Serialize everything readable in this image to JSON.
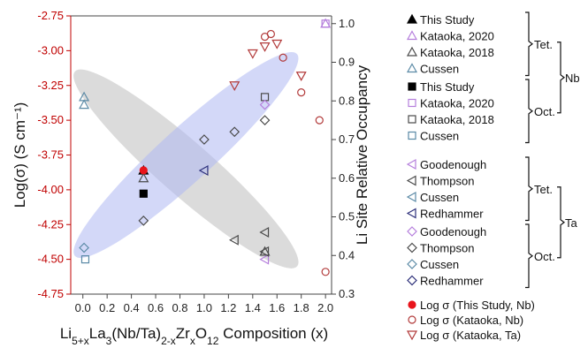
{
  "colors": {
    "left_axis": "#c00000",
    "grey_ellipse": "#bdbdbd",
    "blue_ellipse": "#aeb8f2",
    "violet": "#b57edc",
    "grey": "#4a4a4a",
    "teal": "#5b8aa6",
    "navy": "#2c2f7a",
    "red": "#e8141b",
    "dark_red": "#b23a3a"
  },
  "chart_data": {
    "type": "scatter",
    "xlabel_parts": [
      {
        "t": "Li",
        "s": ""
      },
      {
        "t": "5+x",
        "s": "sub"
      },
      {
        "t": "La",
        "s": ""
      },
      {
        "t": "3",
        "s": "sub"
      },
      {
        "t": "(Nb/Ta)",
        "s": ""
      },
      {
        "t": "2-x",
        "s": "sub"
      },
      {
        "t": "Zr",
        "s": ""
      },
      {
        "t": "x",
        "s": "sub"
      },
      {
        "t": "O",
        "s": ""
      },
      {
        "t": "12",
        "s": "sub"
      },
      {
        "t": " Composition (x)",
        "s": ""
      }
    ],
    "ylabel_left": "Log(σ) (S cm⁻¹)",
    "ylabel_right": "Li Site Relative Occupancy",
    "xlim": [
      -0.1,
      2.05
    ],
    "ylim_left": [
      -4.75,
      -2.75
    ],
    "ylim_right": [
      0.3,
      1.02
    ],
    "x_ticks": [
      "0.0",
      "0.2",
      "0.4",
      "0.6",
      "0.8",
      "1.0",
      "1.2",
      "1.4",
      "1.6",
      "1.8",
      "2.0"
    ],
    "y_ticks_left": [
      "-2.75",
      "-3.00",
      "-3.25",
      "-3.50",
      "-3.75",
      "-4.00",
      "-4.25",
      "-4.50",
      "-4.75"
    ],
    "y_ticks_right": [
      "0.3",
      "0.4",
      "0.5",
      "0.6",
      "0.7",
      "0.8",
      "0.9",
      "1.0"
    ],
    "series": [
      {
        "name": "This Study",
        "site": "Tet.",
        "element": "Nb",
        "axis": "right",
        "marker": "triangle-up",
        "color": "#000000",
        "filled": true,
        "points": [
          [
            0.5,
            0.62
          ]
        ]
      },
      {
        "name": "Kataoka, 2020",
        "site": "Tet.",
        "element": "Nb",
        "axis": "right",
        "marker": "triangle-up",
        "color": "#b57edc",
        "filled": false,
        "points": [
          [
            2.0,
            1.0
          ]
        ]
      },
      {
        "name": "Kataoka, 2018",
        "site": "Tet.",
        "element": "Nb",
        "axis": "right",
        "marker": "triangle-up",
        "color": "#4a4a4a",
        "filled": false,
        "points": [
          [
            0.5,
            0.6
          ],
          [
            1.5,
            0.41
          ]
        ]
      },
      {
        "name": "Cussen",
        "site": "Tet.",
        "element": "Nb",
        "axis": "right",
        "marker": "triangle-up",
        "color": "#5b8aa6",
        "filled": false,
        "points": [
          [
            0.01,
            0.81
          ],
          [
            0.01,
            0.79
          ]
        ]
      },
      {
        "name": "This Study",
        "site": "Oct.",
        "element": "Nb",
        "axis": "right",
        "marker": "square",
        "color": "#000000",
        "filled": true,
        "points": [
          [
            0.5,
            0.56
          ]
        ]
      },
      {
        "name": "Kataoka, 2020",
        "site": "Oct.",
        "element": "Nb",
        "axis": "right",
        "marker": "square",
        "color": "#b57edc",
        "filled": false,
        "points": [
          [
            2.0,
            1.0
          ]
        ]
      },
      {
        "name": "Kataoka, 2018",
        "site": "Oct.",
        "element": "Nb",
        "axis": "right",
        "marker": "square",
        "color": "#4a4a4a",
        "filled": false,
        "points": [
          [
            1.5,
            0.81
          ]
        ]
      },
      {
        "name": "Cussen",
        "site": "Oct.",
        "element": "Nb",
        "axis": "right",
        "marker": "square",
        "color": "#5b8aa6",
        "filled": false,
        "points": [
          [
            0.02,
            0.39
          ]
        ]
      },
      {
        "name": "Goodenough",
        "site": "Tet.",
        "element": "Ta",
        "axis": "right",
        "marker": "triangle-left",
        "color": "#b57edc",
        "filled": false,
        "points": [
          [
            1.5,
            0.39
          ]
        ]
      },
      {
        "name": "Thompson",
        "site": "Tet.",
        "element": "Ta",
        "axis": "right",
        "marker": "triangle-left",
        "color": "#4a4a4a",
        "filled": false,
        "points": [
          [
            1.25,
            0.44
          ],
          [
            1.5,
            0.46
          ],
          [
            1.5,
            0.41
          ]
        ]
      },
      {
        "name": "Cussen",
        "site": "Tet.",
        "element": "Ta",
        "axis": "right",
        "marker": "triangle-left",
        "color": "#5b8aa6",
        "filled": false,
        "points": []
      },
      {
        "name": "Redhammer",
        "site": "Tet.",
        "element": "Ta",
        "axis": "right",
        "marker": "triangle-left",
        "color": "#2c2f7a",
        "filled": false,
        "points": [
          [
            1.0,
            0.62
          ]
        ]
      },
      {
        "name": "Goodenough",
        "site": "Oct.",
        "element": "Ta",
        "axis": "right",
        "marker": "diamond",
        "color": "#b57edc",
        "filled": false,
        "points": [
          [
            1.5,
            0.79
          ]
        ]
      },
      {
        "name": "Thompson",
        "site": "Oct.",
        "element": "Ta",
        "axis": "right",
        "marker": "diamond",
        "color": "#4a4a4a",
        "filled": false,
        "points": [
          [
            0.5,
            0.49
          ],
          [
            1.0,
            0.7
          ],
          [
            1.25,
            0.72
          ],
          [
            1.5,
            0.75
          ]
        ]
      },
      {
        "name": "Cussen",
        "site": "Oct.",
        "element": "Ta",
        "axis": "right",
        "marker": "diamond",
        "color": "#5b8aa6",
        "filled": false,
        "points": [
          [
            0.01,
            0.42
          ]
        ]
      },
      {
        "name": "Redhammer",
        "site": "Oct.",
        "element": "Ta",
        "axis": "right",
        "marker": "diamond",
        "color": "#2c2f7a",
        "filled": false,
        "points": []
      },
      {
        "name": "Log σ (This Study, Nb)",
        "axis": "left",
        "marker": "circle",
        "color": "#e8141b",
        "filled": true,
        "points": [
          [
            0.5,
            -3.86
          ]
        ]
      },
      {
        "name": "Log σ (Kataoka, Nb)",
        "axis": "left",
        "marker": "circle",
        "color": "#b23a3a",
        "filled": false,
        "points": [
          [
            1.5,
            -2.9
          ],
          [
            1.55,
            -2.88
          ],
          [
            1.65,
            -3.05
          ],
          [
            1.8,
            -3.3
          ],
          [
            1.95,
            -3.5
          ],
          [
            2.0,
            -4.59
          ]
        ]
      },
      {
        "name": "Log σ (Kataoka, Ta)",
        "axis": "left",
        "marker": "triangle-down",
        "color": "#b23a3a",
        "filled": false,
        "points": [
          [
            1.25,
            -3.25
          ],
          [
            1.4,
            -3.02
          ],
          [
            1.5,
            -2.97
          ],
          [
            1.6,
            -2.95
          ],
          [
            1.8,
            -3.18
          ]
        ]
      }
    ],
    "ellipses": [
      {
        "color": "#bdbdbd",
        "trend": "decreasing",
        "center": [
          0.85,
          -3.85
        ],
        "from": [
          0.0,
          -3.2
        ],
        "to": [
          1.7,
          -4.5
        ]
      },
      {
        "color": "#aeb8f2",
        "trend": "increasing",
        "center": [
          0.85,
          -3.75
        ],
        "from": [
          0.0,
          -4.45
        ],
        "to": [
          1.7,
          -3.1
        ]
      }
    ],
    "legend_groups": [
      {
        "label": "Tet.",
        "rows": [
          0,
          1,
          2,
          3
        ],
        "parent": "Nb"
      },
      {
        "label": "Oct.",
        "rows": [
          4,
          5,
          6,
          7
        ],
        "parent": "Nb"
      },
      {
        "label": "Tet.",
        "rows": [
          8,
          9,
          10,
          11
        ],
        "parent": "Ta"
      },
      {
        "label": "Oct.",
        "rows": [
          12,
          13,
          14,
          15
        ],
        "parent": "Ta"
      }
    ],
    "legend_parents": [
      "Nb",
      "Ta"
    ],
    "legend_placement": "right"
  }
}
